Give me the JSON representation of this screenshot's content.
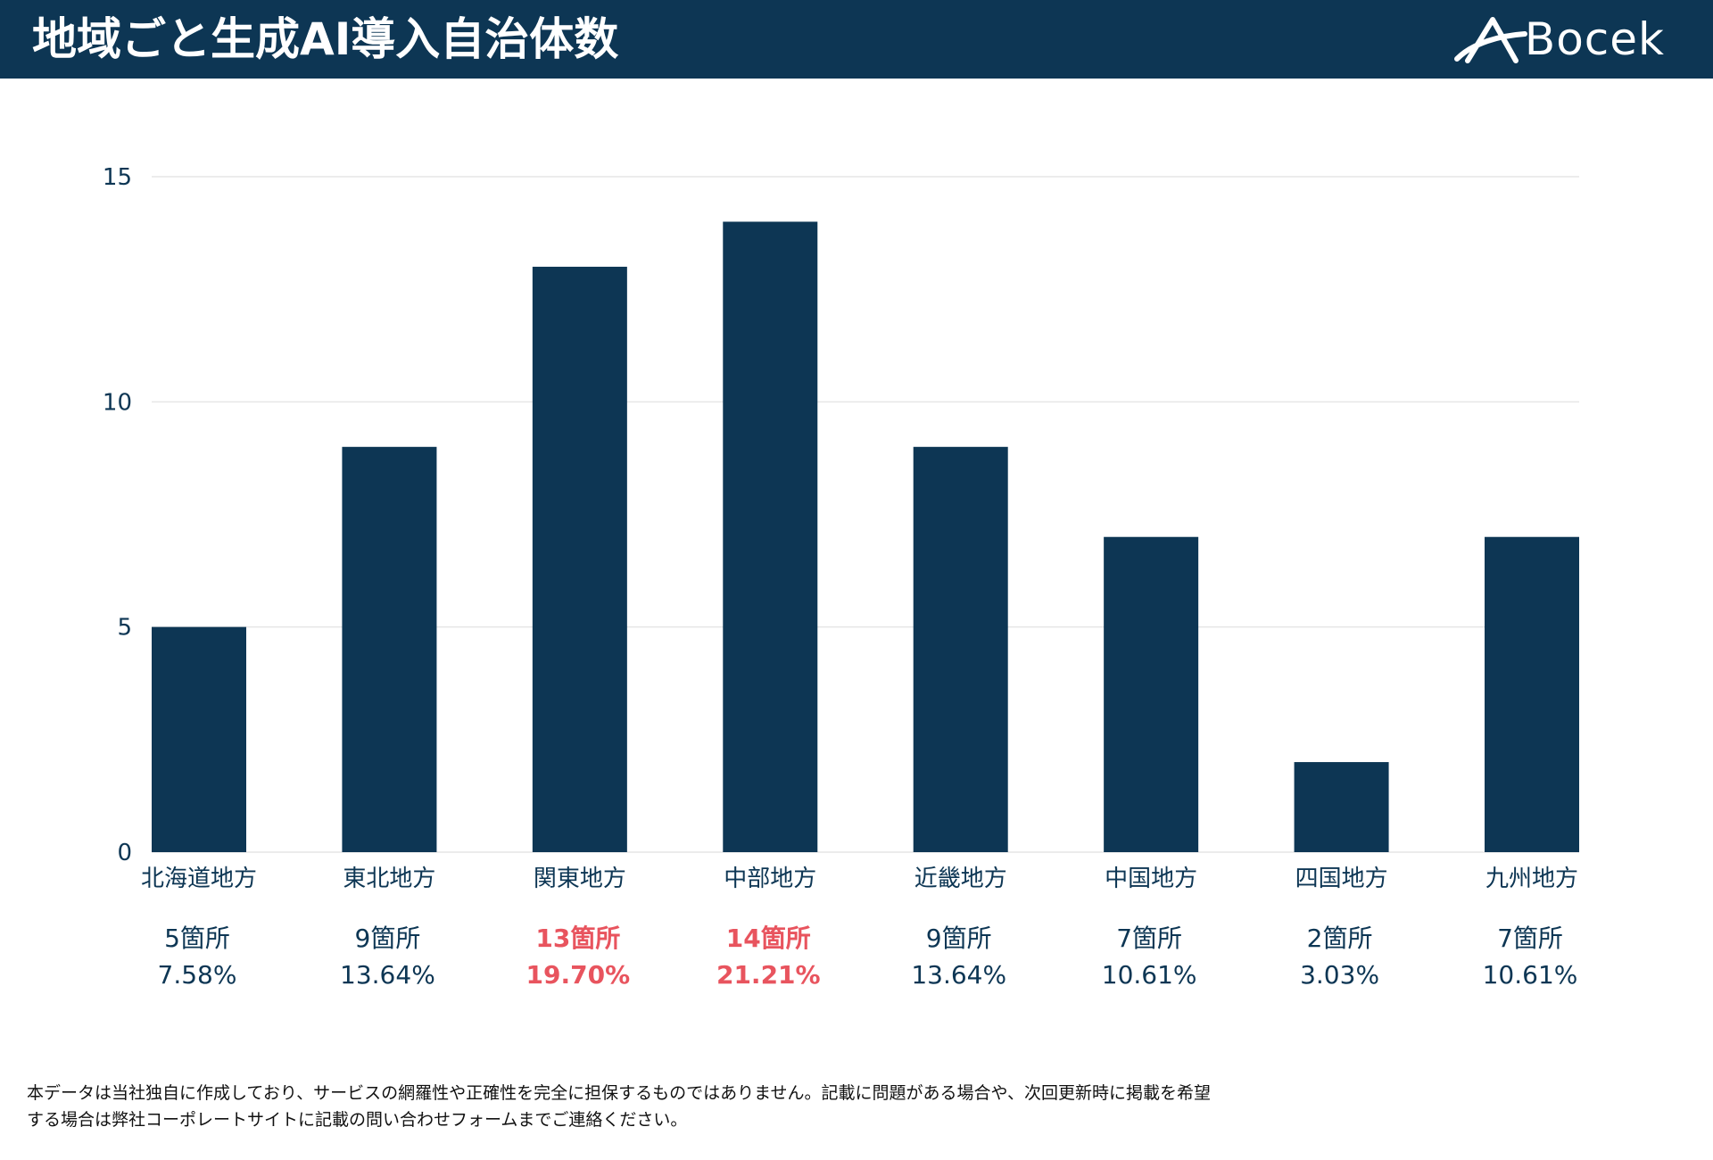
{
  "header": {
    "title": "地域ごと生成AI導入自治体数",
    "brand": "Bocek"
  },
  "colors": {
    "header_bg": "#0d3654",
    "bar": "#0d3654",
    "axis_text": "#0d3654",
    "highlight": "#e8545e",
    "grid": "#e6e6e6"
  },
  "chart_data": {
    "type": "bar",
    "title": "地域ごと生成AI導入自治体数",
    "xlabel": "",
    "ylabel": "",
    "ylim": [
      0,
      15
    ],
    "yticks": [
      0,
      5,
      10,
      15
    ],
    "grid": true,
    "categories": [
      "北海道地方",
      "東北地方",
      "関東地方",
      "中部地方",
      "近畿地方",
      "中国地方",
      "四国地方",
      "九州地方"
    ],
    "values": [
      5,
      9,
      13,
      14,
      9,
      7,
      2,
      7
    ],
    "count_labels": [
      "5箇所",
      "9箇所",
      "13箇所",
      "14箇所",
      "9箇所",
      "7箇所",
      "2箇所",
      "7箇所"
    ],
    "percent_labels": [
      "7.58%",
      "13.64%",
      "19.70%",
      "21.21%",
      "13.64%",
      "10.61%",
      "3.03%",
      "10.61%"
    ],
    "highlighted": [
      false,
      false,
      true,
      true,
      false,
      false,
      false,
      false
    ]
  },
  "footnote": {
    "line1": "本データは当社独自に作成しており、サービスの網羅性や正確性を完全に担保するものではありません。記載に問題がある場合や、次回更新時に掲載を希望",
    "line2": "する場合は弊社コーポレートサイトに記載の問い合わせフォームまでご連絡ください。"
  }
}
